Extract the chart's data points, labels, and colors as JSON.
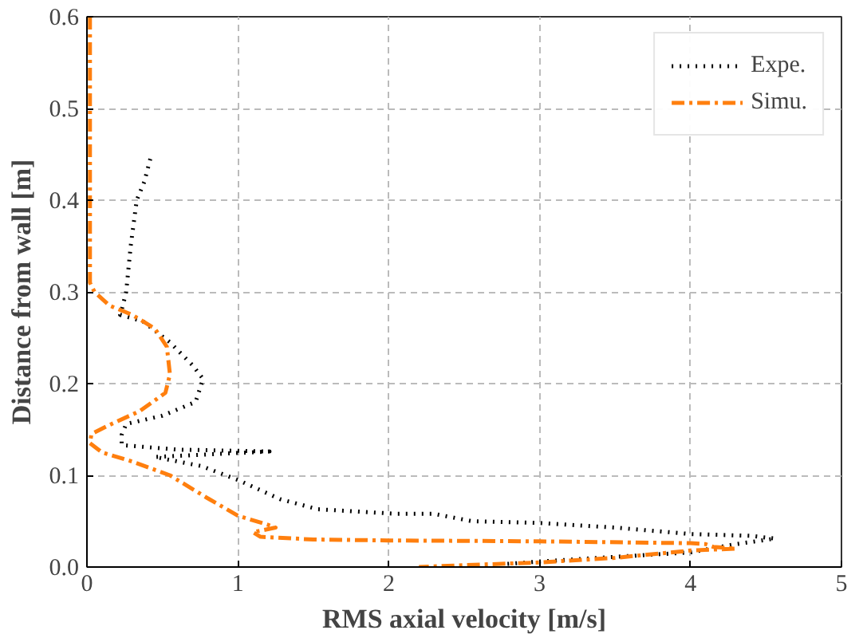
{
  "chart_data": {
    "type": "line",
    "xlabel": "RMS axial velocity [m/s]",
    "ylabel": "Distance from wall [m]",
    "xlim": [
      0,
      5
    ],
    "ylim": [
      0,
      0.6
    ],
    "xticks": [
      0,
      1,
      2,
      3,
      4,
      5
    ],
    "yticks": [
      {
        "value": 0,
        "label": "0.0"
      },
      {
        "value": 0.1,
        "label": "0.1"
      },
      {
        "value": 0.2,
        "label": "0.2"
      },
      {
        "value": 0.3,
        "label": "0.3"
      },
      {
        "value": 0.4,
        "label": "0.4"
      },
      {
        "value": 0.5,
        "label": "0.5"
      },
      {
        "value": 0.6,
        "label": "0.6"
      }
    ],
    "grid": true,
    "legend": "top right",
    "series": [
      {
        "name": "Expe.",
        "color": "#000000",
        "line_style": "dotted",
        "x": [
          0.42,
          0.38,
          0.33,
          0.29,
          0.26,
          0.23,
          0.22,
          0.37,
          0.55,
          0.7,
          0.77,
          0.72,
          0.5,
          0.26,
          0.23,
          0.23,
          0.6,
          1.21,
          0.45,
          0.76,
          1.0,
          1.28,
          1.53,
          2.05,
          2.3,
          2.55,
          3.0,
          3.5,
          4.0,
          4.4,
          4.56,
          4.3,
          4.0,
          3.49,
          3.0,
          2.75
        ],
        "values": [
          0.445,
          0.42,
          0.4,
          0.35,
          0.3,
          0.28,
          0.275,
          0.268,
          0.245,
          0.22,
          0.205,
          0.18,
          0.165,
          0.156,
          0.144,
          0.133,
          0.128,
          0.126,
          0.12,
          0.11,
          0.095,
          0.074,
          0.063,
          0.058,
          0.058,
          0.05,
          0.048,
          0.043,
          0.036,
          0.034,
          0.031,
          0.025,
          0.016,
          0.011,
          0.006,
          0.003
        ]
      },
      {
        "name": "Simu.",
        "color": "#ff7f0e",
        "line_style": "dashdot",
        "x": [
          0.02,
          0.02,
          0.02,
          0.05,
          0.15,
          0.3,
          0.45,
          0.53,
          0.55,
          0.52,
          0.35,
          0.15,
          0.03,
          0.02,
          0.1,
          0.3,
          0.55,
          0.8,
          1.0,
          1.2,
          1.25,
          1.1,
          1.15,
          1.5,
          2.0,
          3.0,
          4.0,
          4.1,
          4.15,
          4.3,
          4.0,
          3.5,
          3.0,
          2.5,
          2.2
        ],
        "values": [
          0.6,
          0.45,
          0.31,
          0.3,
          0.285,
          0.275,
          0.26,
          0.24,
          0.21,
          0.19,
          0.17,
          0.155,
          0.145,
          0.135,
          0.125,
          0.115,
          0.1,
          0.075,
          0.056,
          0.046,
          0.043,
          0.038,
          0.033,
          0.03,
          0.029,
          0.028,
          0.026,
          0.025,
          0.022,
          0.02,
          0.018,
          0.01,
          0.005,
          0.002,
          0.0
        ]
      }
    ]
  }
}
